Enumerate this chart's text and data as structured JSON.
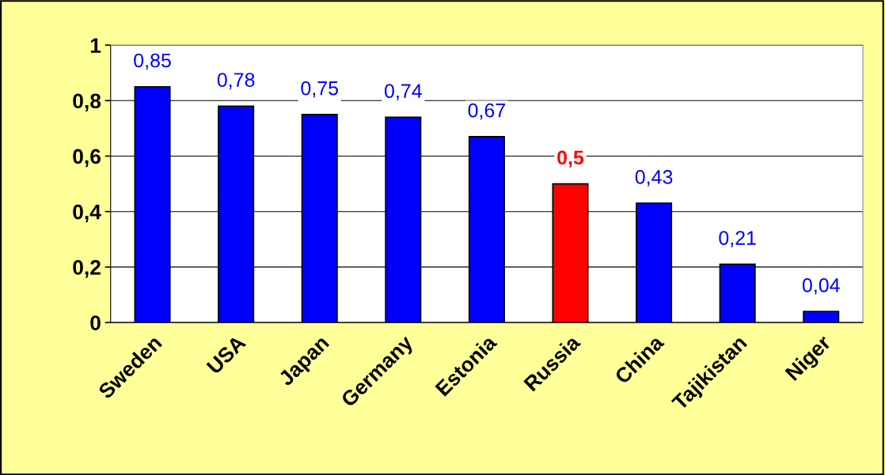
{
  "chart_data": {
    "type": "bar",
    "categories": [
      "Sweden",
      "USA",
      "Japan",
      "Germany",
      "Estonia",
      "Russia",
      "China",
      "Tajikistan",
      "Niger"
    ],
    "values": [
      0.85,
      0.78,
      0.75,
      0.74,
      0.67,
      0.5,
      0.43,
      0.21,
      0.04
    ],
    "colors": [
      "#0000ff",
      "#0000ff",
      "#0000ff",
      "#0000ff",
      "#0000ff",
      "#ff0000",
      "#0000ff",
      "#0000ff",
      "#0000ff"
    ],
    "value_labels": [
      "0,85",
      "0,78",
      "0,75",
      "0,74",
      "0,67",
      "0,5",
      "0,43",
      "0,21",
      "0,04"
    ],
    "ylim": [
      0,
      1
    ],
    "yticks": [
      {
        "value": 0,
        "label": "0"
      },
      {
        "value": 0.2,
        "label": "0,2"
      },
      {
        "value": 0.4,
        "label": "0,4"
      },
      {
        "value": 0.6,
        "label": "0,6"
      },
      {
        "value": 0.8,
        "label": "0,8"
      },
      {
        "value": 1,
        "label": "1"
      }
    ],
    "grid": "y",
    "legend": false
  }
}
